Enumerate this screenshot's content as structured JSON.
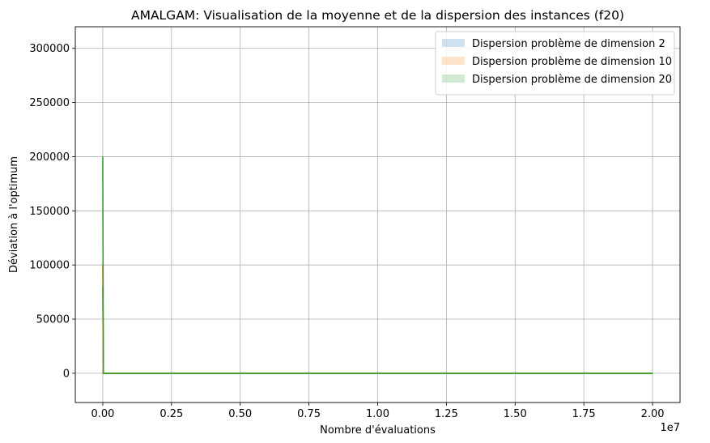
{
  "chart_data": {
    "type": "line",
    "title": "AMALGAM: Visualisation de la moyenne et de la dispersion des instances (f20)",
    "xlabel": "Nombre d'évaluations",
    "ylabel": "Déviation à l'optimum",
    "x_offset_label": "1e7",
    "xlim": [
      -1000000,
      21000000
    ],
    "ylim": [
      -27000,
      320000
    ],
    "xticks": [
      0,
      2500000,
      5000000,
      7500000,
      10000000,
      12500000,
      15000000,
      17500000,
      20000000
    ],
    "xtick_labels": [
      "0.00",
      "0.25",
      "0.50",
      "0.75",
      "1.00",
      "1.25",
      "1.50",
      "1.75",
      "2.00"
    ],
    "yticks": [
      0,
      50000,
      100000,
      150000,
      200000,
      250000,
      300000
    ],
    "ytick_labels": [
      "0",
      "50000",
      "100000",
      "150000",
      "200000",
      "250000",
      "300000"
    ],
    "grid": true,
    "legend_position": "upper right",
    "series": [
      {
        "name": "Dispersion problème de dimension 2",
        "color": "#1f77b4",
        "x": [
          0,
          20000,
          50000,
          20000000
        ],
        "mean": [
          80000,
          0,
          0,
          0
        ],
        "low": [
          0,
          0,
          0,
          0
        ],
        "high": [
          140000,
          0,
          0,
          0
        ]
      },
      {
        "name": "Dispersion problème de dimension 10",
        "color": "#ff7f0e",
        "x": [
          0,
          20000,
          50000,
          20000000
        ],
        "mean": [
          100000,
          0,
          0,
          0
        ],
        "low": [
          0,
          0,
          0,
          0
        ],
        "high": [
          150000,
          0,
          0,
          0
        ]
      },
      {
        "name": "Dispersion problème de dimension 20",
        "color": "#2ca02c",
        "x": [
          0,
          20000,
          50000,
          20000000
        ],
        "mean": [
          200000,
          0,
          0,
          0
        ],
        "low": [
          0,
          0,
          0,
          0
        ],
        "high": [
          200000,
          0,
          0,
          0
        ]
      }
    ]
  }
}
